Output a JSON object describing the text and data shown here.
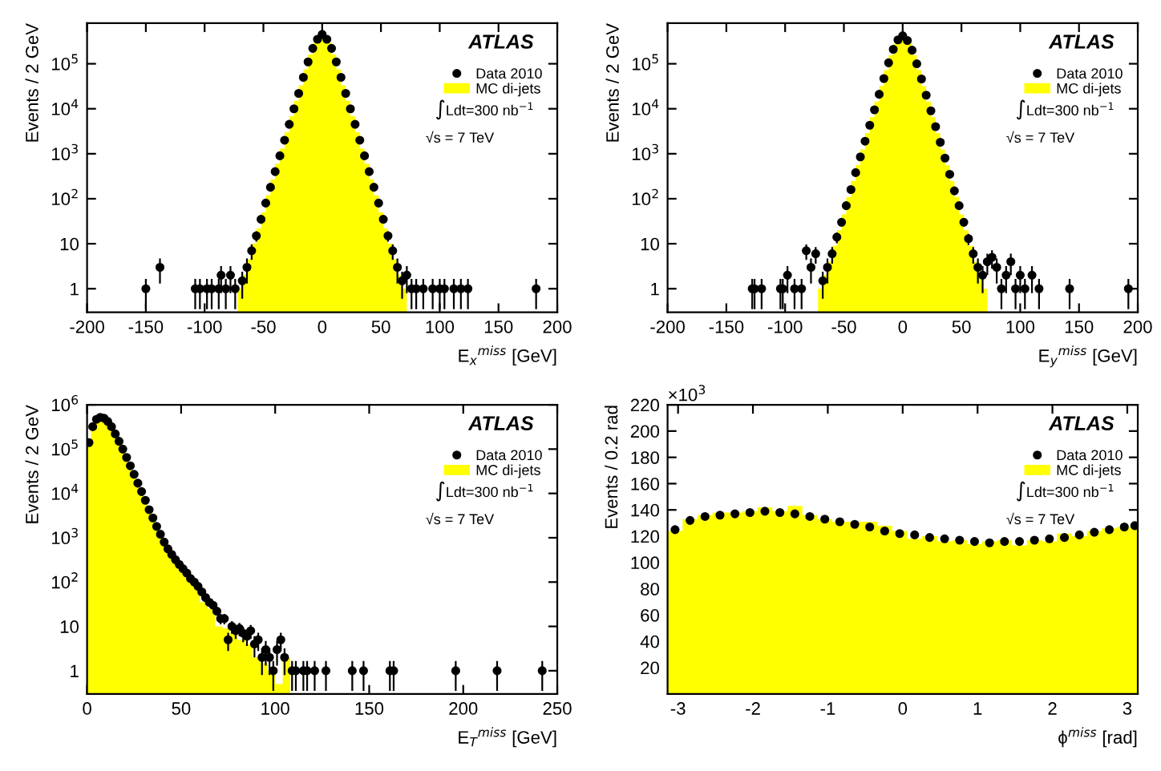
{
  "chart_data": [
    {
      "type": "histogram",
      "xlabel": "E$_{x}$$^{miss}$ [GeV]",
      "ylabel": "Events / 2 GeV",
      "log": true,
      "legend": "right",
      "xlim": [
        -200,
        200
      ],
      "xticks": [
        -200,
        -150,
        -100,
        -50,
        0,
        50,
        100,
        150,
        200
      ],
      "ylim": [
        0.3,
        800000
      ],
      "yticks": [
        1,
        10,
        {
          "value": 100,
          "label": "10$^{2}$"
        },
        {
          "value": 1000,
          "label": "10$^{3}$"
        },
        {
          "value": 10000,
          "label": "10$^{4}$"
        },
        {
          "value": 100000,
          "label": "10$^{5}$"
        }
      ],
      "annotations": [
        "ATLAS",
        "∫Ldt=300 nb$^{−1}$",
        "√s = 7 TeV"
      ],
      "series": [
        {
          "name": "MC di-jets",
          "type": "histogram",
          "color": "#ffff00",
          "bins": [
            -72,
            -68,
            -64,
            -60,
            -56,
            -52,
            -48,
            -44,
            -40,
            -36,
            -32,
            -28,
            -24,
            -20,
            -16,
            -12,
            -8,
            -4,
            0,
            4,
            8,
            12,
            16,
            20,
            24,
            28,
            32,
            36,
            40,
            44,
            48,
            52,
            56,
            60,
            64,
            68,
            72
          ],
          "values": [
            1,
            2,
            4.5,
            10,
            22,
            50,
            120,
            270,
            600,
            1300,
            3000,
            6800,
            15000,
            33000,
            75000,
            160000,
            290000,
            430000,
            430000,
            290000,
            160000,
            75000,
            33000,
            15000,
            6800,
            3000,
            1300,
            600,
            270,
            120,
            50,
            22,
            10,
            4.5,
            2,
            1
          ]
        },
        {
          "name": "Data 2010",
          "type": "scatter",
          "color": "#000000",
          "marker": "circle",
          "x": [
            -150,
            -138,
            -108,
            -104,
            -98,
            -94,
            -88,
            -86,
            -82,
            -78,
            -74,
            -68,
            -64,
            -60,
            -56,
            -52,
            -48,
            -44,
            -40,
            -36,
            -32,
            -28,
            -24,
            -20,
            -16,
            -12,
            -8,
            -4,
            0,
            4,
            8,
            12,
            16,
            20,
            24,
            28,
            32,
            36,
            40,
            44,
            48,
            52,
            56,
            60,
            64,
            68,
            72,
            76,
            80,
            86,
            94,
            100,
            104,
            112,
            118,
            124,
            182
          ],
          "values": [
            1,
            3,
            1,
            1,
            1,
            1,
            1,
            2,
            1,
            2,
            1,
            1.5,
            3,
            7,
            15,
            35,
            80,
            180,
            400,
            900,
            2000,
            4500,
            10000,
            22000,
            50000,
            110000,
            220000,
            350000,
            450000,
            350000,
            220000,
            110000,
            50000,
            22000,
            10000,
            4500,
            2000,
            900,
            400,
            180,
            80,
            35,
            15,
            7,
            3,
            1.5,
            2,
            1,
            1,
            1,
            1,
            1,
            1,
            1,
            1,
            1,
            1
          ],
          "errors": [
            0.65,
            1.7,
            0.65,
            0.65,
            0.65,
            0.65,
            0.65,
            1.2,
            0.65,
            1.2,
            0.65,
            0.9,
            1.7,
            2.6,
            3.9,
            null,
            null,
            null,
            null,
            null,
            null,
            null,
            null,
            null,
            null,
            null,
            null,
            null,
            null,
            null,
            null,
            null,
            null,
            null,
            null,
            null,
            null,
            null,
            null,
            null,
            null,
            null,
            3.9,
            2.6,
            1.7,
            0.9,
            1.2,
            0.65,
            0.65,
            0.65,
            0.65,
            0.65,
            0.65,
            0.65,
            0.65,
            0.65,
            0.65
          ]
        }
      ]
    },
    {
      "type": "histogram",
      "xlabel": "E$_{y}$$^{miss}$ [GeV]",
      "ylabel": "Events / 2 GeV",
      "log": true,
      "legend": "right",
      "xlim": [
        -200,
        200
      ],
      "xticks": [
        -200,
        -150,
        -100,
        -50,
        0,
        50,
        100,
        150,
        200
      ],
      "ylim": [
        0.3,
        800000
      ],
      "yticks": [
        1,
        10,
        {
          "value": 100,
          "label": "10$^{2}$"
        },
        {
          "value": 1000,
          "label": "10$^{3}$"
        },
        {
          "value": 10000,
          "label": "10$^{4}$"
        },
        {
          "value": 100000,
          "label": "10$^{5}$"
        }
      ],
      "annotations": [
        "ATLAS",
        "∫Ldt=300 nb$^{−1}$",
        "√s = 7 TeV"
      ],
      "series": [
        {
          "name": "MC di-jets",
          "type": "histogram",
          "color": "#ffff00",
          "bins": [
            -72,
            -68,
            -64,
            -60,
            -56,
            -52,
            -48,
            -44,
            -40,
            -36,
            -32,
            -28,
            -24,
            -20,
            -16,
            -12,
            -8,
            -4,
            0,
            4,
            8,
            12,
            16,
            20,
            24,
            28,
            32,
            36,
            40,
            44,
            48,
            52,
            56,
            60,
            64,
            68,
            72
          ],
          "values": [
            1,
            2,
            4,
            9,
            20,
            45,
            110,
            250,
            560,
            1250,
            2900,
            6500,
            14500,
            32000,
            72000,
            155000,
            280000,
            410000,
            410000,
            280000,
            155000,
            72000,
            32000,
            14500,
            6500,
            2900,
            1250,
            560,
            250,
            110,
            45,
            20,
            9,
            4,
            2,
            1
          ]
        },
        {
          "name": "Data 2010",
          "type": "scatter",
          "color": "#000000",
          "marker": "circle",
          "x": [
            -128,
            -126,
            -120,
            -104,
            -102,
            -98,
            -92,
            -86,
            -82,
            -78,
            -74,
            -68,
            -64,
            -60,
            -56,
            -52,
            -48,
            -44,
            -40,
            -36,
            -32,
            -28,
            -24,
            -20,
            -16,
            -12,
            -8,
            -4,
            0,
            4,
            8,
            12,
            16,
            20,
            24,
            28,
            32,
            36,
            40,
            44,
            48,
            52,
            56,
            60,
            64,
            68,
            72,
            76,
            80,
            84,
            88,
            92,
            96,
            100,
            104,
            110,
            116,
            142,
            192
          ],
          "values": [
            1,
            1,
            1,
            1,
            1,
            2,
            1,
            1,
            7,
            3,
            6,
            1.5,
            3,
            6,
            14,
            30,
            70,
            160,
            380,
            850,
            1900,
            4300,
            9500,
            21000,
            47000,
            105000,
            210000,
            340000,
            420000,
            330000,
            200000,
            100000,
            46000,
            20000,
            9000,
            4000,
            1800,
            800,
            350,
            150,
            70,
            30,
            13,
            6,
            3,
            2,
            4,
            5,
            3,
            1,
            2,
            4,
            1,
            2,
            1,
            2,
            1,
            1,
            1
          ],
          "errors": [
            0.65,
            0.65,
            0.65,
            0.65,
            0.65,
            1.2,
            0.65,
            0.65,
            2.6,
            1.7,
            2.4,
            0.9,
            1.7,
            2.4,
            3.7,
            null,
            null,
            null,
            null,
            null,
            null,
            null,
            null,
            null,
            null,
            null,
            null,
            null,
            null,
            null,
            null,
            null,
            null,
            null,
            null,
            null,
            null,
            null,
            null,
            null,
            null,
            null,
            3.6,
            2.4,
            1.7,
            1.2,
            2,
            2.2,
            1.7,
            0.65,
            1.2,
            2,
            0.65,
            1.2,
            0.65,
            1.2,
            0.65,
            0.65,
            0.65
          ]
        }
      ]
    },
    {
      "type": "histogram",
      "xlabel": "E$_{T}$$^{miss}$ [GeV]",
      "ylabel": "Events / 2 GeV",
      "log": true,
      "legend": "right",
      "xlim": [
        0,
        250
      ],
      "xticks": [
        0,
        50,
        100,
        150,
        200,
        250
      ],
      "ylim": [
        0.3,
        1000000
      ],
      "yticks": [
        1,
        10,
        {
          "value": 100,
          "label": "10$^{2}$"
        },
        {
          "value": 1000,
          "label": "10$^{3}$"
        },
        {
          "value": 10000,
          "label": "10$^{4}$"
        },
        {
          "value": 100000,
          "label": "10$^{5}$"
        },
        {
          "value": 1000000,
          "label": "10$^{6}$"
        }
      ],
      "annotations": [
        "ATLAS",
        "∫Ldt=300 nb$^{−1}$",
        "√s = 7 TeV"
      ],
      "series": [
        {
          "name": "MC di-jets",
          "type": "histogram",
          "color": "#ffff00",
          "bins": [
            0,
            2,
            4,
            6,
            8,
            10,
            12,
            14,
            16,
            18,
            20,
            22,
            24,
            26,
            28,
            30,
            32,
            34,
            36,
            38,
            40,
            42,
            44,
            46,
            48,
            50,
            52,
            54,
            56,
            58,
            60,
            64,
            68,
            72,
            76,
            80,
            84,
            88,
            92,
            96,
            100,
            104,
            108
          ],
          "values": [
            130000,
            310000,
            460000,
            520000,
            500000,
            420000,
            320000,
            220000,
            150000,
            100000,
            65000,
            42000,
            27000,
            17000,
            11000,
            7000,
            4300,
            2800,
            1800,
            1200,
            800,
            560,
            420,
            320,
            250,
            190,
            150,
            110,
            90,
            70,
            35,
            25,
            10,
            9,
            7,
            5,
            4,
            2,
            1.5,
            1,
            0.5,
            2
          ]
        },
        {
          "name": "Data 2010",
          "type": "scatter",
          "color": "#000000",
          "marker": "circle",
          "x": [
            1,
            3,
            5,
            7,
            9,
            11,
            13,
            15,
            17,
            19,
            21,
            23,
            25,
            27,
            29,
            31,
            33,
            35,
            37,
            39,
            41,
            43,
            45,
            47,
            49,
            51,
            53,
            55,
            57,
            59,
            61,
            63,
            65,
            67,
            69,
            71,
            73,
            75,
            77,
            79,
            81,
            83,
            85,
            87,
            89,
            91,
            93,
            95,
            97,
            99,
            101,
            103,
            105,
            109,
            111,
            115,
            117,
            121,
            127,
            141,
            147,
            161,
            163,
            196,
            218,
            242
          ],
          "values": [
            140000,
            320000,
            470000,
            520000,
            500000,
            420000,
            320000,
            220000,
            150000,
            100000,
            65000,
            42000,
            27000,
            17000,
            11000,
            7000,
            4300,
            2800,
            1800,
            1200,
            800,
            560,
            420,
            320,
            250,
            200,
            160,
            120,
            100,
            80,
            60,
            45,
            35,
            30,
            22,
            15,
            15,
            5,
            10,
            8,
            9,
            7,
            6,
            8,
            4,
            5,
            2,
            3,
            2,
            1,
            3,
            5,
            2,
            1,
            1,
            1,
            1,
            1,
            1,
            1,
            1,
            1,
            1,
            1,
            1,
            1
          ],
          "errors": [
            null,
            null,
            null,
            null,
            null,
            null,
            null,
            null,
            null,
            null,
            null,
            null,
            null,
            null,
            null,
            null,
            null,
            null,
            null,
            null,
            null,
            null,
            null,
            null,
            null,
            null,
            null,
            null,
            null,
            null,
            null,
            null,
            null,
            null,
            null,
            3.9,
            3.9,
            2.2,
            3.2,
            2.8,
            3,
            2.6,
            2.4,
            2.8,
            2,
            2.2,
            1.2,
            1.7,
            1.2,
            0.65,
            1.7,
            2.2,
            1.2,
            0.65,
            0.65,
            0.65,
            0.65,
            0.65,
            0.65,
            0.65,
            0.65,
            0.65,
            0.65,
            0.65,
            0.65,
            0.65
          ]
        }
      ]
    },
    {
      "type": "histogram",
      "xlabel": "ϕ$^{miss}$ [rad]",
      "ylabel": "Events / 0.2 rad",
      "legend": "right",
      "xlim": [
        -3.14,
        3.14
      ],
      "xticks": [
        -3,
        -2,
        -1,
        0,
        1,
        2,
        3
      ],
      "ylim": [
        0,
        220
      ],
      "yticks": [
        20,
        40,
        60,
        80,
        100,
        120,
        140,
        160,
        180,
        200,
        220
      ],
      "annotations": [
        "×10$^{3}$",
        "ATLAS",
        "∫Ldt=300 nb$^{−1}$",
        "√s = 7 TeV"
      ],
      "series": [
        {
          "name": "MC di-jets",
          "type": "histogram",
          "color": "#ffff00",
          "bins": [
            -3.14,
            -2.94,
            -2.74,
            -2.54,
            -2.34,
            -2.14,
            -1.94,
            -1.74,
            -1.54,
            -1.34,
            -1.14,
            -0.94,
            -0.74,
            -0.54,
            -0.34,
            -0.14,
            0.06,
            0.26,
            0.46,
            0.66,
            0.86,
            1.06,
            1.26,
            1.46,
            1.66,
            1.86,
            2.06,
            2.26,
            2.46,
            2.66,
            2.86,
            3.06,
            3.14
          ],
          "values": [
            124,
            133,
            136,
            138,
            138,
            139,
            142,
            139,
            143,
            136,
            133,
            131,
            131,
            131,
            128,
            124,
            118,
            120,
            116,
            117,
            114,
            116,
            117,
            113,
            117,
            116,
            122,
            120,
            124,
            126,
            127,
            128
          ]
        },
        {
          "name": "Data 2010",
          "type": "scatter",
          "color": "#000000",
          "marker": "circle",
          "x": [
            -3.04,
            -2.84,
            -2.64,
            -2.44,
            -2.24,
            -2.04,
            -1.84,
            -1.64,
            -1.44,
            -1.24,
            -1.04,
            -0.84,
            -0.64,
            -0.44,
            -0.24,
            -0.04,
            0.16,
            0.36,
            0.56,
            0.76,
            0.96,
            1.16,
            1.36,
            1.56,
            1.76,
            1.96,
            2.16,
            2.36,
            2.56,
            2.76,
            2.96,
            3.1
          ],
          "values": [
            125,
            132,
            135,
            136,
            137,
            138,
            139,
            138,
            137,
            135,
            133,
            131,
            129,
            127,
            124,
            122,
            121,
            119,
            118,
            117,
            116,
            115,
            116,
            116,
            117,
            118,
            119,
            121,
            123,
            125,
            127,
            128
          ]
        }
      ]
    }
  ]
}
